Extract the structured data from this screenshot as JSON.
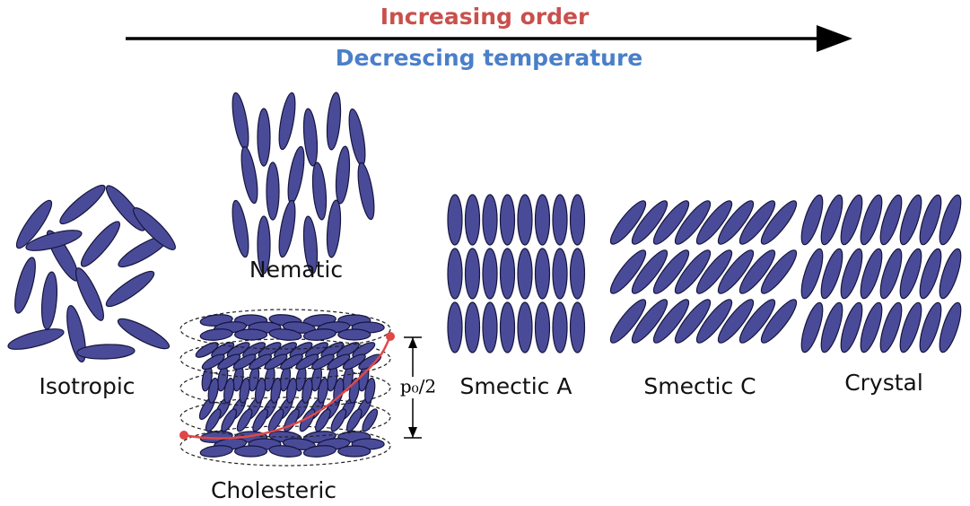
{
  "header": {
    "order": "Increasing order",
    "temperature": "Decrescing temperature"
  },
  "phases": {
    "isotropic": "Isotropic",
    "nematic": "Nematic",
    "cholesteric": "Cholesteric",
    "smectic_a": "Smectic A",
    "smectic_c": "Smectic C",
    "crystal": "Crystal"
  },
  "pitch_label": "p₀/2"
}
